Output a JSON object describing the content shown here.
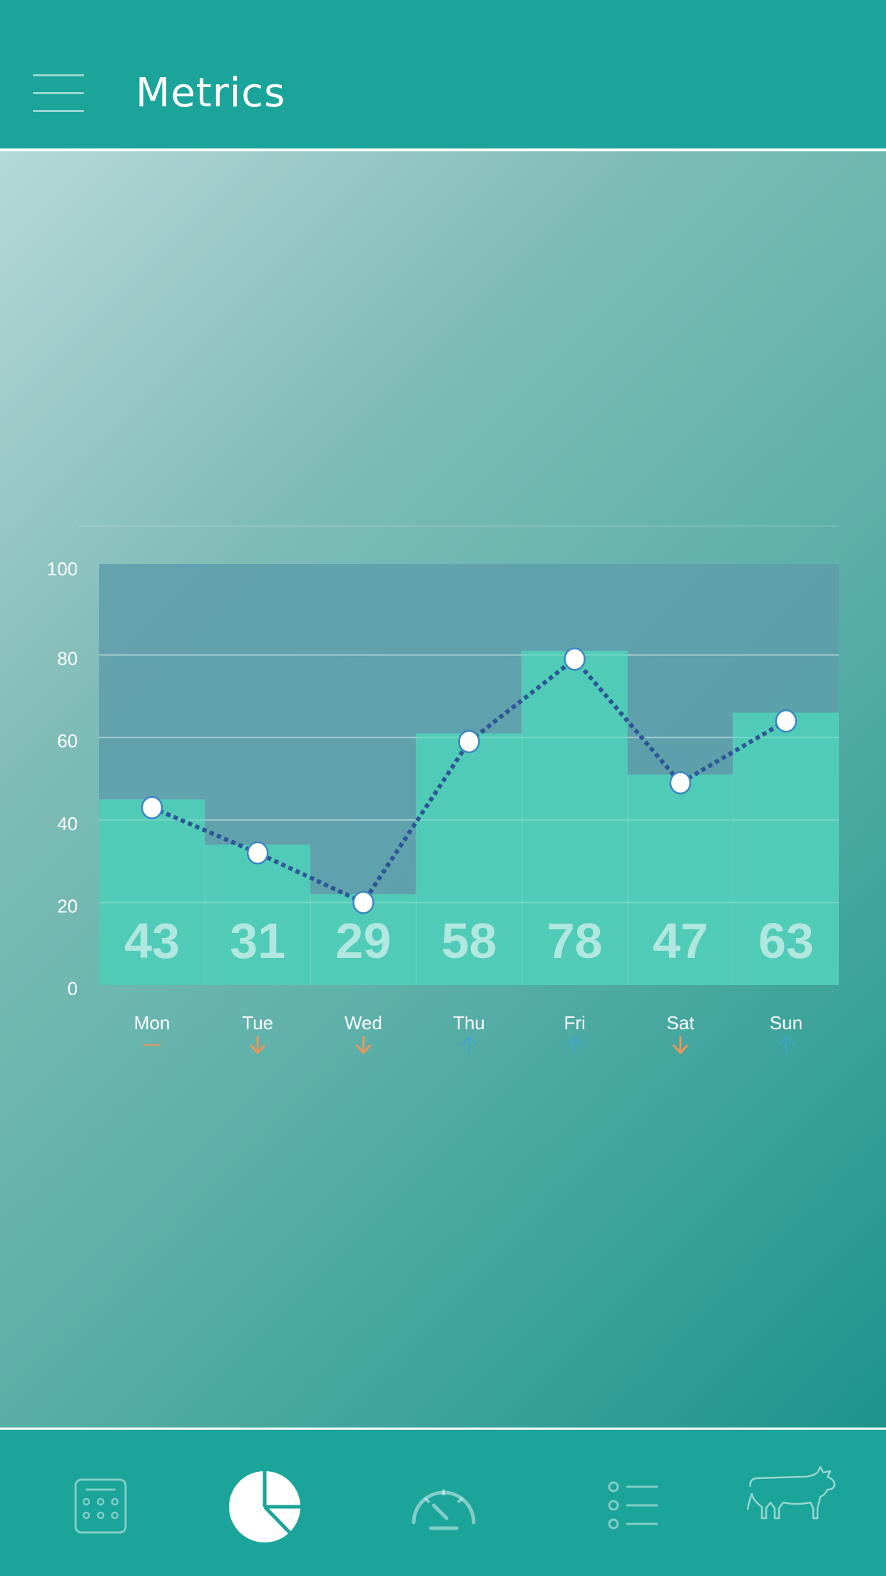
{
  "header": {
    "title": "Metrics"
  },
  "chart_data": {
    "type": "bar",
    "categories": [
      "Mon",
      "Tue",
      "Wed",
      "Thu",
      "Fri",
      "Sat",
      "Sun"
    ],
    "values": [
      43,
      31,
      29,
      58,
      78,
      47,
      63
    ],
    "line_values": [
      43,
      32,
      20,
      59,
      79,
      49,
      64
    ],
    "bar_heights": [
      45,
      34,
      22,
      61,
      81,
      51,
      66
    ],
    "trend": [
      "flat",
      "down",
      "down",
      "up",
      "up",
      "down",
      "up"
    ],
    "ylim": [
      0,
      100
    ],
    "yticks": [
      0,
      20,
      40,
      60,
      80,
      100
    ],
    "grid": true,
    "title": "",
    "xlabel": "",
    "ylabel": ""
  },
  "colors": {
    "bar": "#4fcfb8",
    "plot_bg": "#5e9eab",
    "line": "#2e5597",
    "trend_up": "#3fa6c6",
    "trend_down": "#e9965a",
    "trend_flat": "#e9965a"
  },
  "tabs": [
    {
      "name": "calendar-tab",
      "icon": "calendar-icon"
    },
    {
      "name": "metrics-tab",
      "icon": "pie-chart-icon"
    },
    {
      "name": "gauge-tab",
      "icon": "speedometer-icon"
    },
    {
      "name": "list-tab",
      "icon": "list-icon"
    },
    {
      "name": "cow-tab",
      "icon": "cow-icon"
    }
  ]
}
